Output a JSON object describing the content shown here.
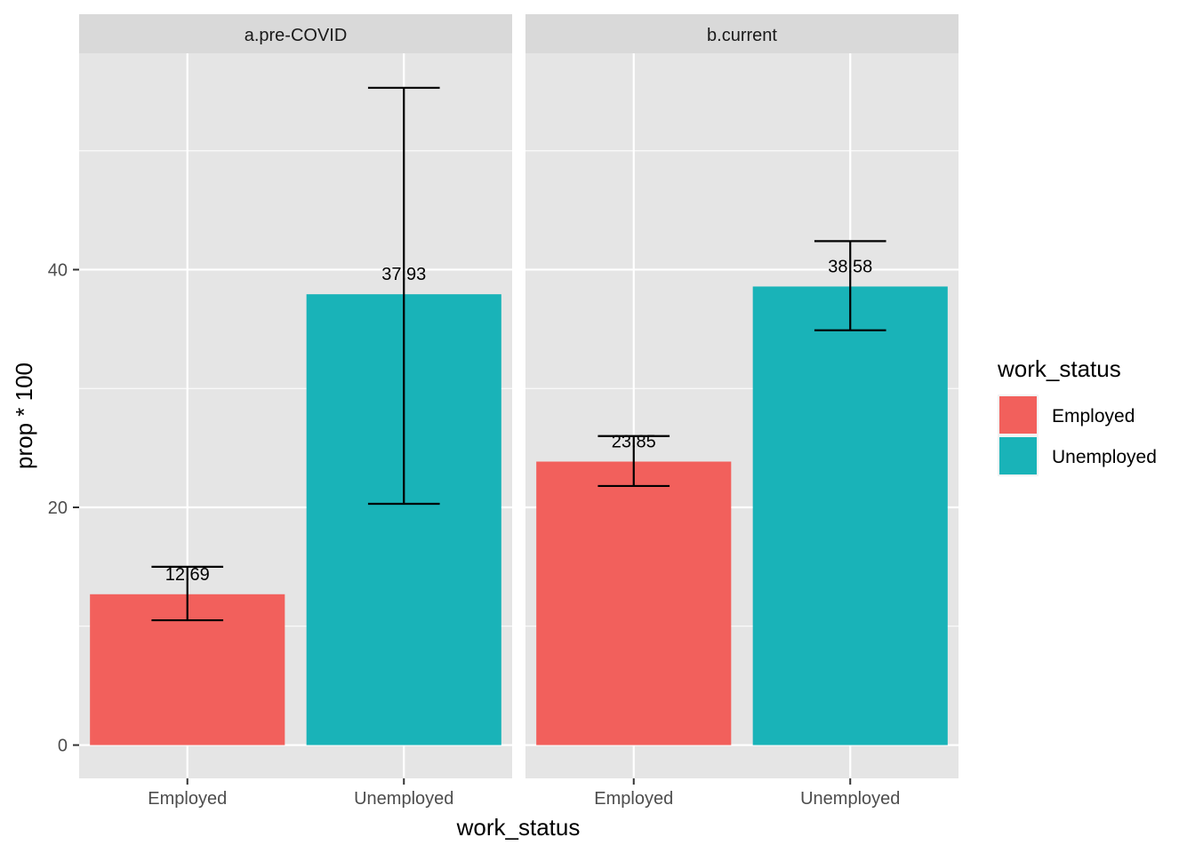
{
  "chart_data": {
    "type": "bar",
    "facets": [
      "a.pre-COVID",
      "b.current"
    ],
    "categories": [
      "Employed",
      "Unemployed"
    ],
    "colors": {
      "Employed": "#F2605C",
      "Unemployed": "#19B3B8",
      "panel_bg": "#E5E5E5",
      "strip_bg": "#D9D9D9",
      "grid": "#FFFFFF"
    },
    "panels": [
      {
        "facet": "a.pre-COVID",
        "bars": [
          {
            "category": "Employed",
            "value": 12.69,
            "label": "12.69",
            "err_low": 10.5,
            "err_high": 15.0
          },
          {
            "category": "Unemployed",
            "value": 37.93,
            "label": "37.93",
            "err_low": 20.3,
            "err_high": 55.3
          }
        ]
      },
      {
        "facet": "b.current",
        "bars": [
          {
            "category": "Employed",
            "value": 23.85,
            "label": "23.85",
            "err_low": 21.8,
            "err_high": 26.0
          },
          {
            "category": "Unemployed",
            "value": 38.58,
            "label": "38.58",
            "err_low": 34.9,
            "err_high": 42.4
          }
        ]
      }
    ],
    "xlabel": "work_status",
    "ylabel": "prop * 100",
    "ylim": [
      -2.8,
      58.2
    ],
    "yticks": [
      0,
      20,
      40
    ],
    "ytick_labels": [
      "0",
      "20",
      "40"
    ],
    "grid": true,
    "legend": {
      "title": "work_status",
      "position": "right",
      "entries": [
        "Employed",
        "Unemployed"
      ]
    }
  }
}
